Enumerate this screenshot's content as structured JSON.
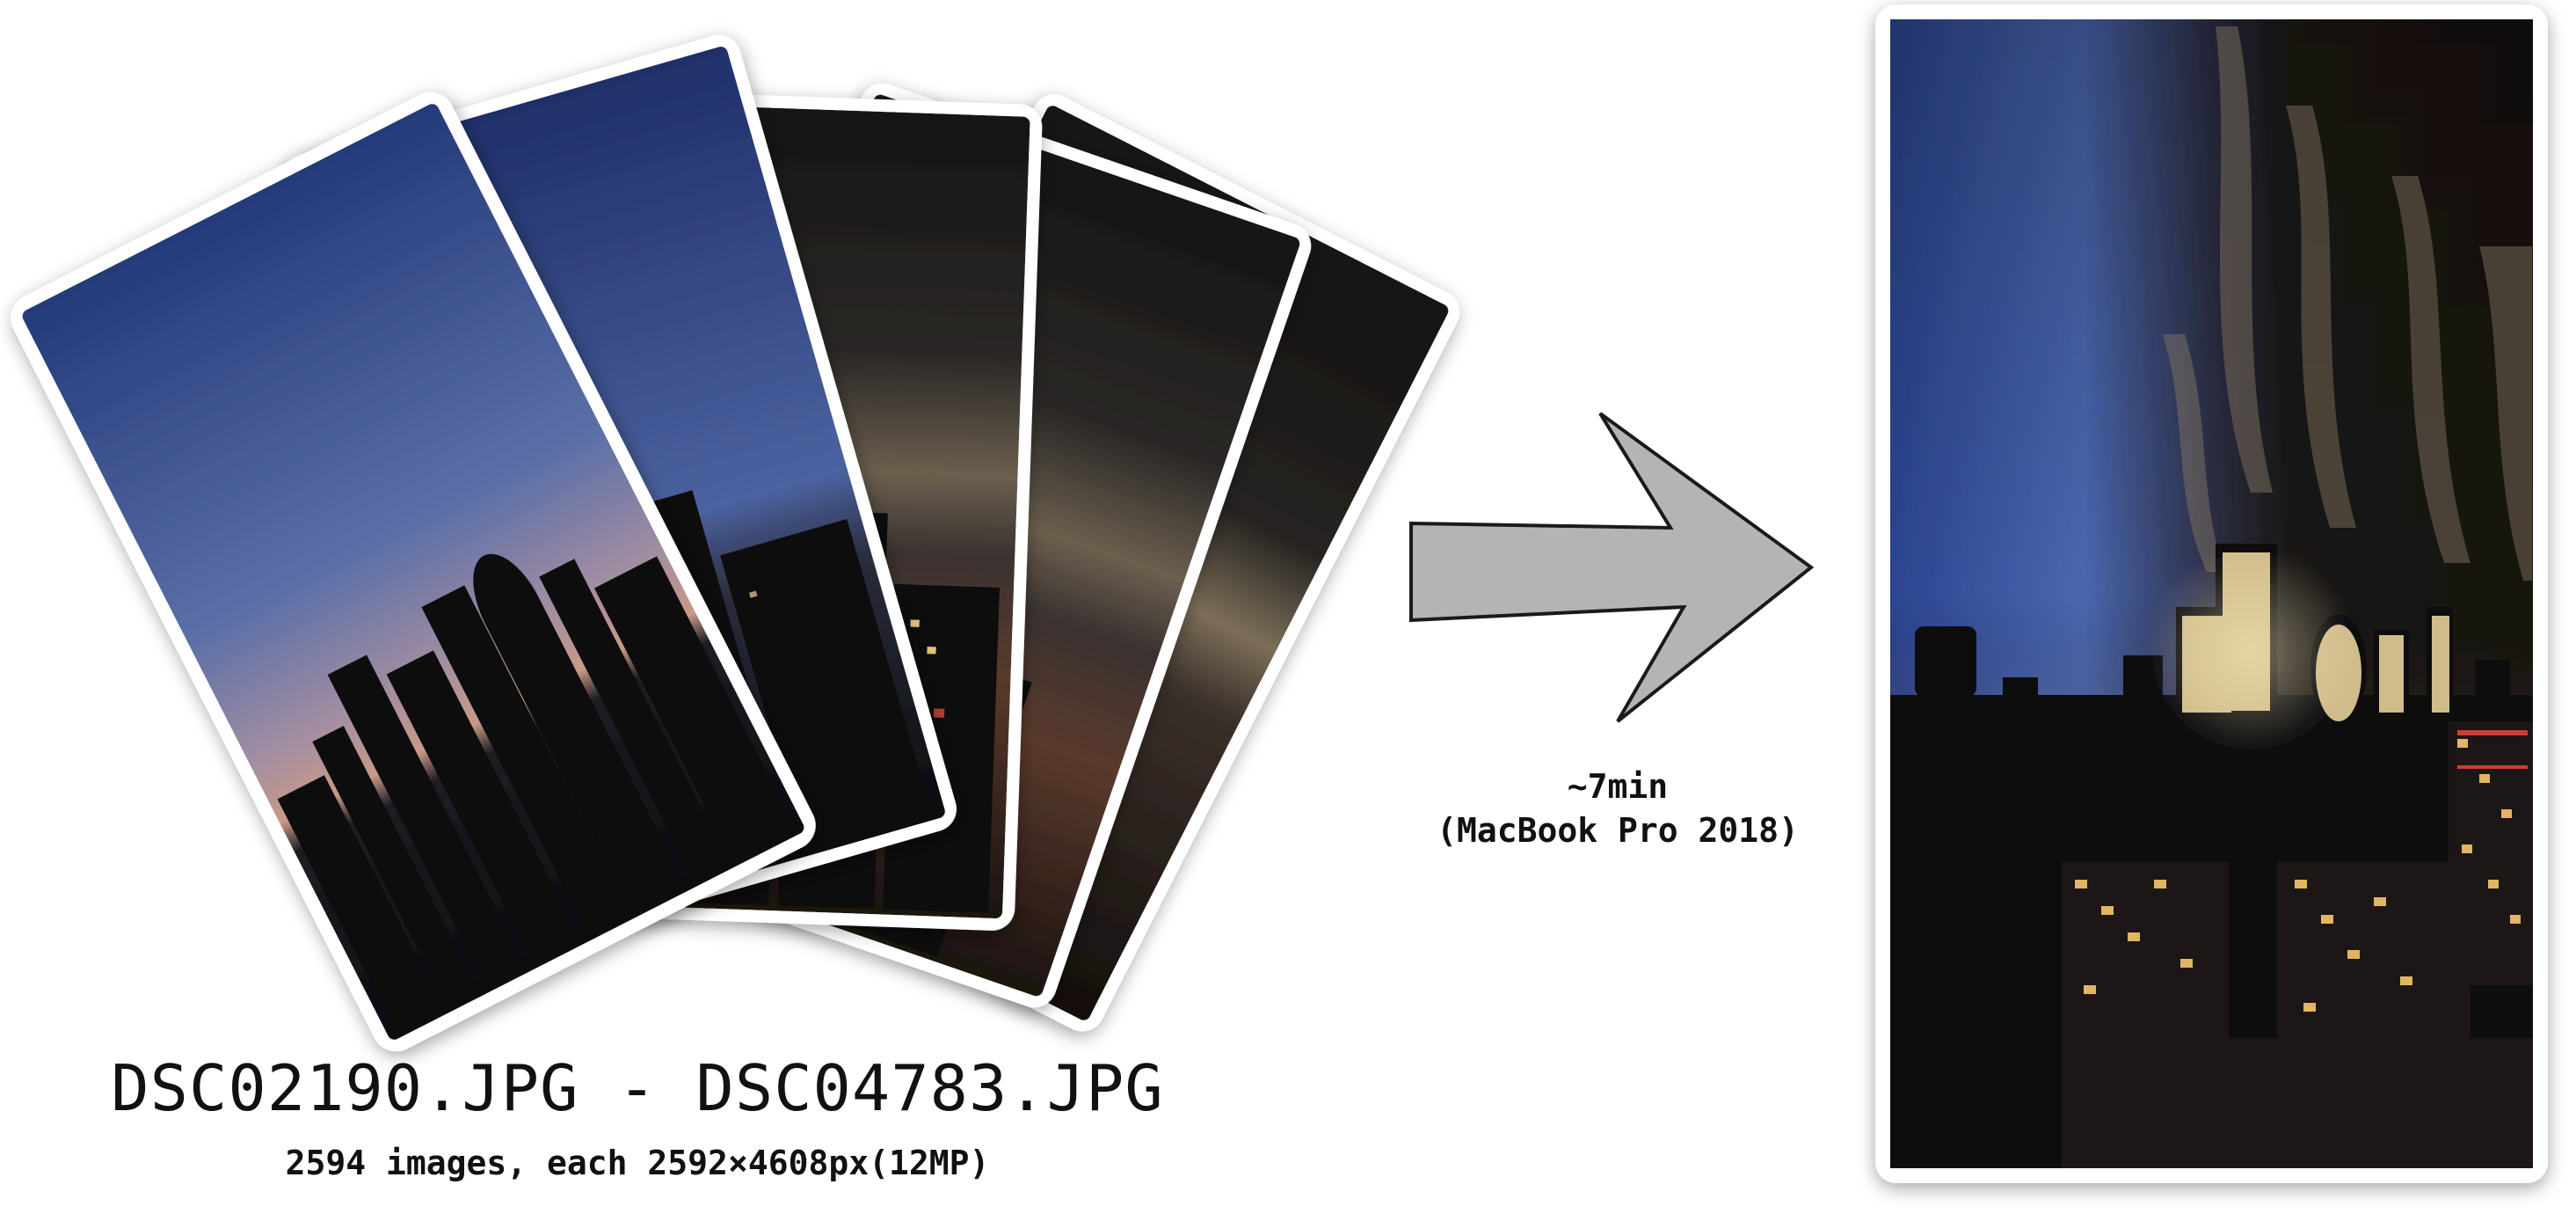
{
  "input": {
    "filename_range": "DSC02190.JPG - DSC04783.JPG",
    "image_count_text": "2594 images, each 2592×4608px(12MP)"
  },
  "process": {
    "duration": "~7min",
    "machine": "(MacBook Pro 2018)"
  },
  "colors": {
    "background": "#ffffff",
    "arrow_fill": "#b4b4b4",
    "arrow_stroke": "#1a1a1a",
    "photo_border": "#ffffff",
    "dusk_sky": "#3a4f8f",
    "night_sky": "#15130f",
    "city_glow": "#f2d28a"
  },
  "icons": {
    "arrow": "right-arrow-icon"
  }
}
